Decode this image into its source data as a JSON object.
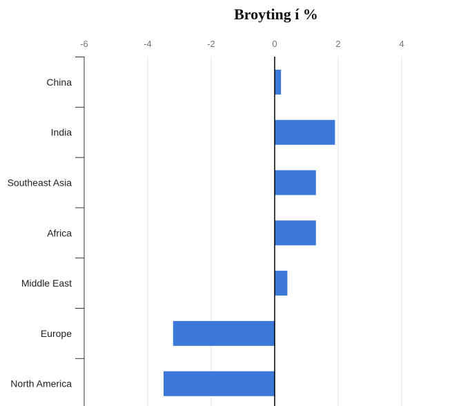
{
  "chart_data": {
    "type": "bar",
    "orientation": "horizontal",
    "title": "Broyting í %",
    "categories": [
      "China",
      "India",
      "Southeast Asia",
      "Africa",
      "Middle East",
      "Europe",
      "North America"
    ],
    "values": [
      0.2,
      1.9,
      1.3,
      1.3,
      0.4,
      -3.2,
      -3.5
    ],
    "xlim": [
      -6,
      6
    ],
    "xticks": [
      "-6",
      "-4",
      "-2",
      "0",
      "2",
      "4",
      "6"
    ],
    "grid": true,
    "colors": {
      "bar": "#3c78d8",
      "grid": "#e6e6e6",
      "zero_line": "#000000",
      "axis": "#333333"
    }
  }
}
